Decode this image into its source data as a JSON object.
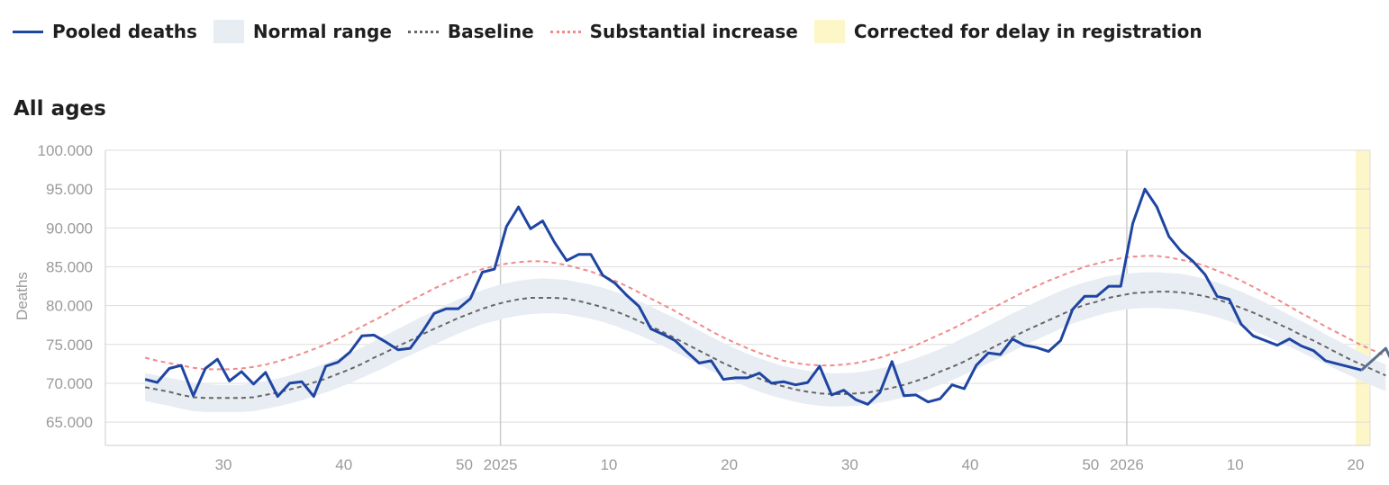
{
  "legend": {
    "items": [
      {
        "label": "Pooled deaths",
        "swatch": "line",
        "color": "#1f45a3"
      },
      {
        "label": "Normal range",
        "swatch": "box",
        "color": "#e8edf3"
      },
      {
        "label": "Baseline",
        "swatch": "dash",
        "color": "#666666"
      },
      {
        "label": "Substantial increase",
        "swatch": "dash",
        "color": "#f08a8a"
      },
      {
        "label": "Corrected for delay in registration",
        "swatch": "box",
        "color": "#fdf6c8"
      }
    ]
  },
  "panel": {
    "title": "All ages"
  },
  "chart_data": {
    "type": "line",
    "title": "All ages",
    "xlabel": "",
    "ylabel": "Deaths",
    "ylim": [
      62000,
      100000
    ],
    "yticks": [
      "100.000",
      "95.000",
      "90.000",
      "85.000",
      "80.000",
      "75.000",
      "70.000",
      "65.000"
    ],
    "ytick_values": [
      100000,
      95000,
      90000,
      85000,
      80000,
      75000,
      70000,
      65000
    ],
    "x_range": [
      -3.8,
      101.2
    ],
    "x_note": "x = consecutive ISO week index; 0 = week 24 of 2024, 28 = week 52 of 2024, 29 = week 1 of 2025, 81 = week 1 of 2026",
    "xticks": [
      {
        "x": 6,
        "label": "30"
      },
      {
        "x": 16,
        "label": "40"
      },
      {
        "x": 26,
        "label": "50"
      },
      {
        "x": 29,
        "label": "2025"
      },
      {
        "x": 38,
        "label": "10"
      },
      {
        "x": 48,
        "label": "20"
      },
      {
        "x": 58,
        "label": "30"
      },
      {
        "x": 68,
        "label": "40"
      },
      {
        "x": 78,
        "label": "50"
      },
      {
        "x": 81,
        "label": "2026"
      },
      {
        "x": 90,
        "label": "10"
      },
      {
        "x": 100,
        "label": "20"
      }
    ],
    "year_lines": [
      29,
      81
    ],
    "grid": true,
    "legend_position": "top",
    "corrected_range": [
      100,
      103
    ],
    "series": [
      {
        "name": "Pooled deaths",
        "color": "#1f45a3",
        "x_start": -0.5,
        "values": [
          70500,
          70100,
          71900,
          72300,
          68400,
          71900,
          73100,
          70300,
          71500,
          69900,
          71400,
          68300,
          70000,
          70200,
          68300,
          72200,
          72700,
          74000,
          76100,
          76200,
          75300,
          74300,
          74500,
          76600,
          79000,
          79600,
          79600,
          80900,
          84300,
          84700,
          90200,
          92700,
          89900,
          90900,
          88100,
          85800,
          86600,
          86600,
          83900,
          82900,
          81300,
          79900,
          77000,
          76300,
          75500,
          74000,
          72600,
          72900,
          70500,
          70700,
          70700,
          71300,
          70000,
          70200,
          69800,
          70100,
          72200,
          68500,
          69100,
          67900,
          67300,
          68800,
          72800,
          68400,
          68500,
          67600,
          68000,
          69800,
          69300,
          72300,
          73900,
          73700,
          75700,
          74900,
          74600,
          74100,
          75500,
          79500,
          81200,
          81200,
          82500,
          82500,
          90600,
          95000,
          92700,
          88900,
          87000,
          85700,
          84000,
          81200,
          80800,
          77600,
          76100,
          75500,
          74900,
          75700,
          74800,
          74200,
          72900,
          72500,
          72100,
          71700,
          73100,
          74500,
          71200
        ]
      },
      {
        "name": "Baseline",
        "color": "#666666",
        "x_start": -0.5,
        "values": [
          69500,
          69200,
          68900,
          68500,
          68200,
          68100,
          68100,
          68100,
          68100,
          68200,
          68500,
          68800,
          69200,
          69600,
          70100,
          70600,
          71200,
          71800,
          72500,
          73300,
          74000,
          74800,
          75500,
          76300,
          77000,
          77700,
          78400,
          79000,
          79600,
          80100,
          80500,
          80800,
          81000,
          81000,
          81000,
          80900,
          80600,
          80200,
          79800,
          79300,
          78700,
          78000,
          77300,
          76600,
          75800,
          75000,
          74200,
          73400,
          72600,
          71900,
          71200,
          70600,
          70000,
          69600,
          69200,
          68900,
          68700,
          68600,
          68600,
          68700,
          68800,
          69100,
          69400,
          69800,
          70300,
          70800,
          71500,
          72100,
          72800,
          73600,
          74300,
          75100,
          75900,
          76700,
          77400,
          78100,
          78800,
          79500,
          80100,
          80500,
          81000,
          81300,
          81600,
          81700,
          81800,
          81800,
          81700,
          81500,
          81200,
          80800,
          80300,
          79700,
          79100,
          78400,
          77700,
          77000,
          76200,
          75500,
          74700,
          73900,
          73100,
          72400,
          71700,
          71000
        ]
      },
      {
        "name": "Substantial increase",
        "color": "#f08a8a",
        "x_start": -0.5,
        "values": [
          73300,
          72900,
          72600,
          72300,
          72000,
          71800,
          71800,
          71800,
          71900,
          72100,
          72400,
          72800,
          73300,
          73800,
          74400,
          75000,
          75700,
          76500,
          77300,
          78100,
          78900,
          79800,
          80600,
          81400,
          82200,
          82900,
          83600,
          84200,
          84700,
          85100,
          85400,
          85600,
          85700,
          85700,
          85500,
          85200,
          84800,
          84400,
          83800,
          83200,
          82500,
          81700,
          80900,
          80100,
          79300,
          78400,
          77600,
          76700,
          75900,
          75200,
          74500,
          73900,
          73400,
          72900,
          72600,
          72400,
          72300,
          72300,
          72400,
          72600,
          72900,
          73300,
          73800,
          74300,
          74900,
          75600,
          76300,
          77000,
          77800,
          78600,
          79400,
          80200,
          81000,
          81800,
          82500,
          83200,
          83800,
          84400,
          85000,
          85400,
          85800,
          86100,
          86300,
          86400,
          86400,
          86200,
          85900,
          85600,
          85100,
          84500,
          83900,
          83200,
          82400,
          81600,
          80800,
          79900,
          79000,
          78200,
          77300,
          76500,
          75700,
          74900,
          74200,
          73500
        ]
      },
      {
        "name": "Normal range upper",
        "x_start": -0.5,
        "values": [
          71300,
          71000,
          70700,
          70400,
          70100,
          69900,
          69800,
          69800,
          69800,
          70000,
          70300,
          70600,
          71000,
          71500,
          72000,
          72600,
          73200,
          73900,
          74600,
          75400,
          76200,
          77000,
          77800,
          78600,
          79300,
          80100,
          80800,
          81400,
          82000,
          82500,
          82900,
          83200,
          83400,
          83500,
          83400,
          83300,
          83000,
          82700,
          82300,
          81800,
          81200,
          80600,
          79900,
          79100,
          78400,
          77600,
          76800,
          76000,
          75200,
          74500,
          73800,
          73200,
          72700,
          72200,
          71900,
          71600,
          71400,
          71300,
          71300,
          71400,
          71600,
          71900,
          72200,
          72700,
          73200,
          73800,
          74400,
          75100,
          75900,
          76600,
          77400,
          78200,
          79000,
          79700,
          80500,
          81200,
          81900,
          82500,
          83000,
          83400,
          83800,
          84000,
          84200,
          84300,
          84300,
          84200,
          84100,
          83800,
          83400,
          83000,
          82400,
          81800,
          81100,
          80400,
          79600,
          78800,
          78000,
          77200,
          76300,
          75500,
          74700,
          73900,
          73100,
          72400
        ]
      },
      {
        "name": "Normal range lower",
        "x_start": -0.5,
        "values": [
          67700,
          67400,
          67100,
          66700,
          66400,
          66300,
          66300,
          66300,
          66300,
          66400,
          66700,
          67000,
          67400,
          67800,
          68300,
          68800,
          69400,
          70000,
          70700,
          71400,
          72100,
          72900,
          73600,
          74300,
          75000,
          75700,
          76400,
          77000,
          77600,
          78000,
          78400,
          78700,
          78900,
          79000,
          79000,
          78900,
          78600,
          78300,
          77900,
          77400,
          76800,
          76200,
          75500,
          74800,
          74000,
          73200,
          72400,
          71600,
          70900,
          70200,
          69500,
          68900,
          68400,
          68000,
          67600,
          67300,
          67100,
          67000,
          67000,
          67100,
          67200,
          67500,
          67800,
          68200,
          68700,
          69200,
          69800,
          70400,
          71100,
          71800,
          72600,
          73300,
          74100,
          74900,
          75600,
          76300,
          77000,
          77700,
          78200,
          78700,
          79100,
          79400,
          79600,
          79700,
          79700,
          79600,
          79500,
          79200,
          78900,
          78500,
          78000,
          77400,
          76800,
          76100,
          75400,
          74700,
          74000,
          73200,
          72500,
          71700,
          71000,
          70300,
          69600,
          69000
        ]
      }
    ]
  }
}
